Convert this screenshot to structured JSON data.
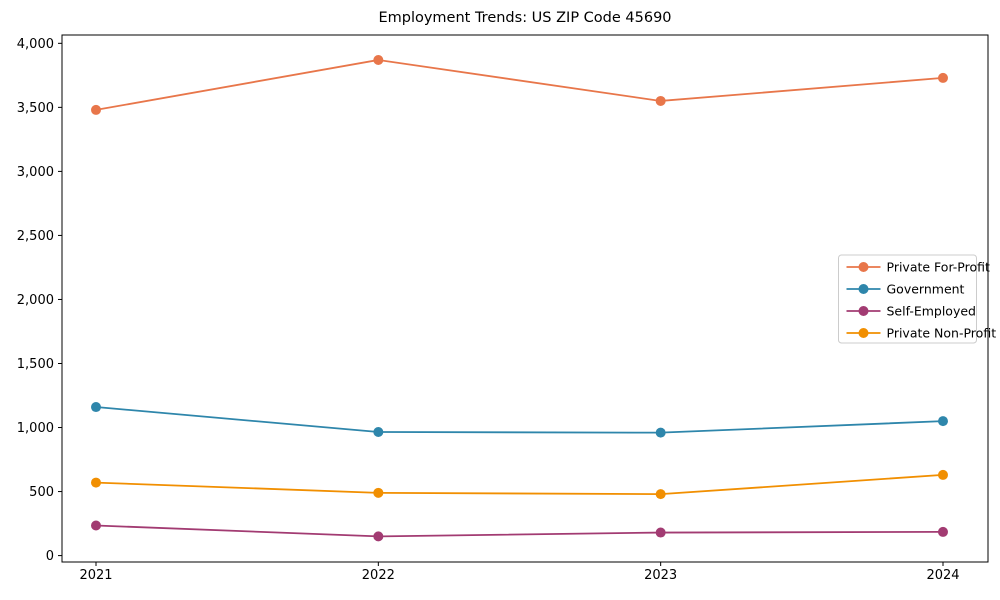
{
  "chart_data": {
    "type": "line",
    "title": "Employment Trends: US ZIP Code 45690",
    "xlabel": "",
    "ylabel": "",
    "categories": [
      "2021",
      "2022",
      "2023",
      "2024"
    ],
    "series": [
      {
        "name": "Private For-Profit",
        "color": "#E8764A",
        "values": [
          3480,
          3870,
          3550,
          3730
        ]
      },
      {
        "name": "Government",
        "color": "#2E86AB",
        "values": [
          1160,
          965,
          960,
          1050
        ]
      },
      {
        "name": "Self-Employed",
        "color": "#A23B72",
        "values": [
          235,
          150,
          180,
          185
        ]
      },
      {
        "name": "Private Non-Profit",
        "color": "#F18F01",
        "values": [
          570,
          490,
          480,
          630
        ]
      }
    ],
    "y_ticks": {
      "values": [
        0,
        500,
        1000,
        1500,
        2000,
        2500,
        3000,
        3500,
        4000
      ],
      "labels": [
        "0",
        "500",
        "1,000",
        "1,500",
        "2,000",
        "2,500",
        "3,000",
        "3,500",
        "4,000"
      ]
    },
    "ylim": [
      -50,
      4065
    ],
    "grid": false,
    "legend_position": "center right",
    "axis_color": "#000000",
    "legend_border_color": "#cccccc",
    "legend_background": "#ffffff"
  }
}
